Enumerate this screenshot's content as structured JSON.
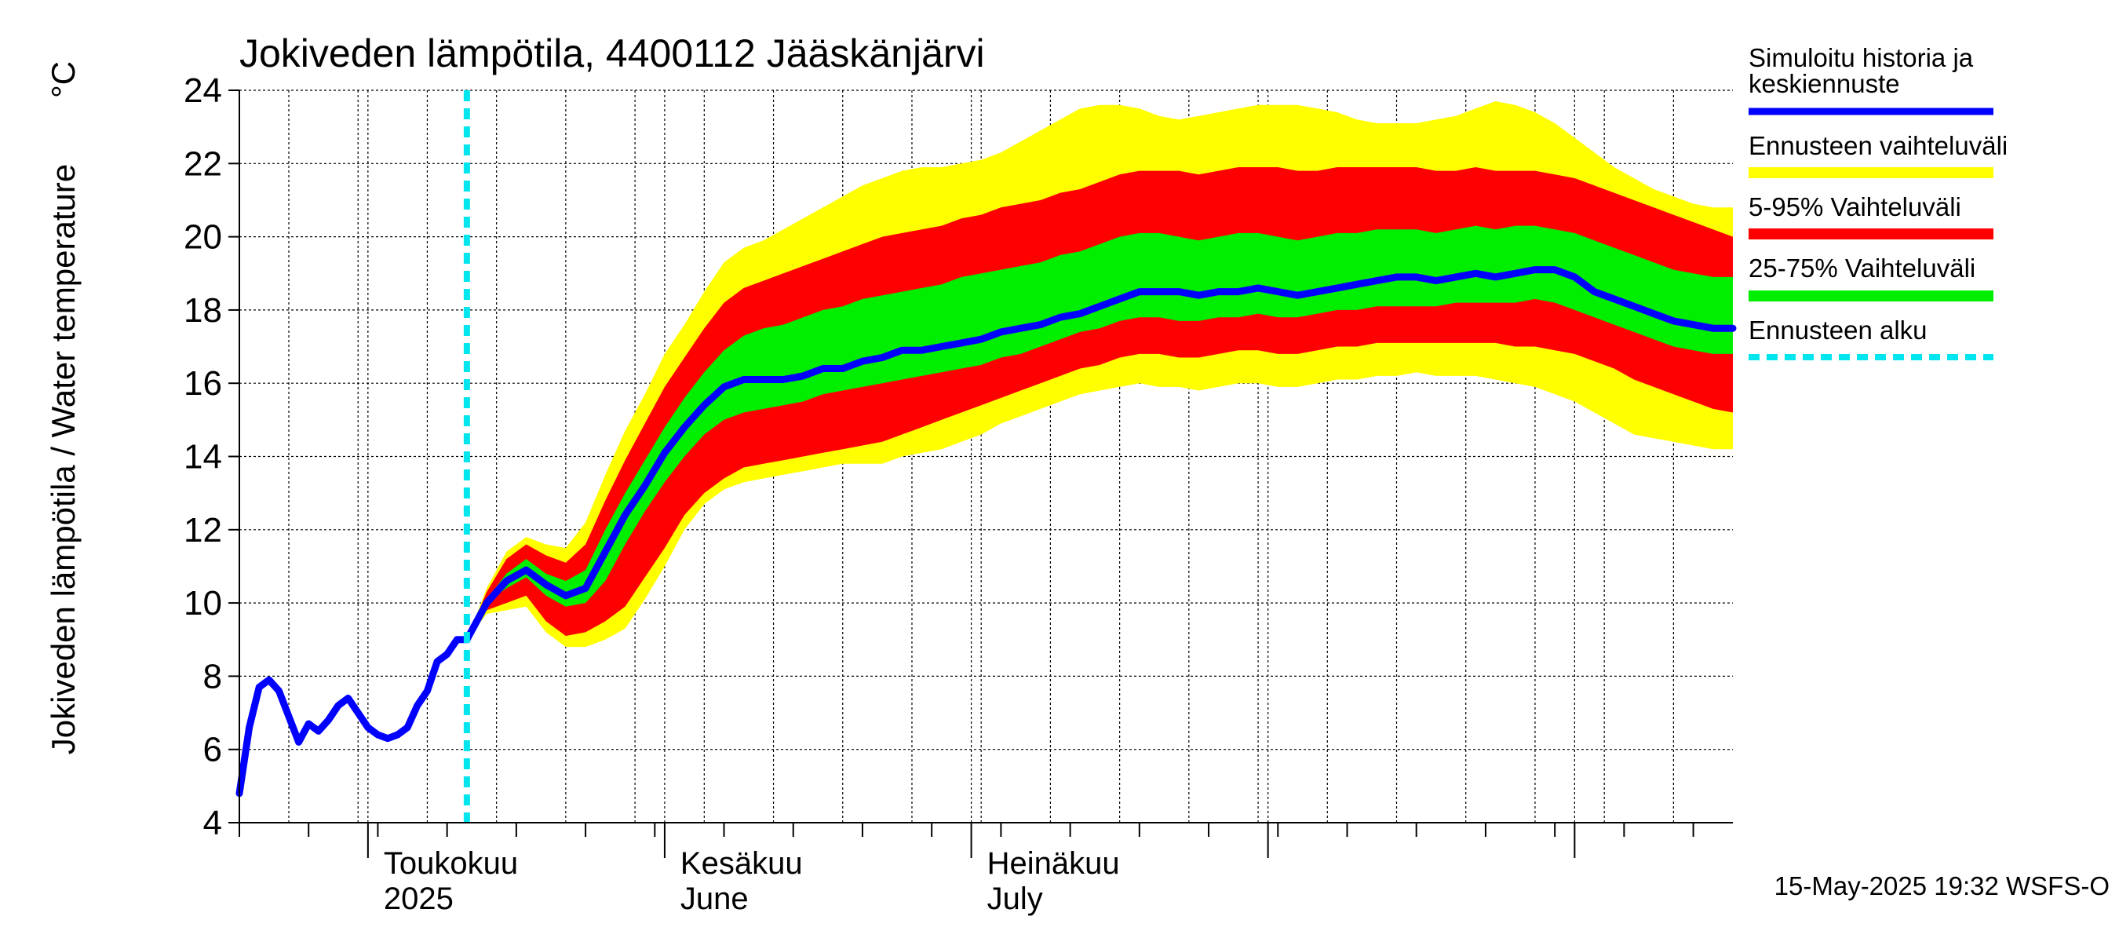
{
  "chart_data": {
    "type": "area",
    "title": "Jokiveden lämpötila, 4400112 Jääskänjärvi",
    "ylabel": "Jokiveden lämpötila / Water temperature",
    "yunit": "°C",
    "ylim": [
      4,
      24
    ],
    "yticks": [
      4,
      6,
      8,
      10,
      12,
      14,
      16,
      18,
      20,
      22,
      24
    ],
    "xlim": [
      "2025-03-19",
      "2025-08-17"
    ],
    "grid": true,
    "legend_position": "right",
    "month_labels": [
      {
        "date": "2025-04-01",
        "line1": "Toukokuu",
        "line2": "2025"
      },
      {
        "date": "2025-05-01",
        "line1": "Kesäkuu",
        "line2": "June"
      },
      {
        "date": "2025-06-01",
        "line1": "Heinäkuu",
        "line2": "July"
      }
    ],
    "forecast_start": "2025-04-11",
    "footer": "15-May-2025 19:32 WSFS-O",
    "legend": [
      {
        "key": "history",
        "label_lines": [
          "Simuloitu historia ja",
          "keskiennuste"
        ],
        "color": "#0000ff",
        "style": "line"
      },
      {
        "key": "minmax",
        "label_lines": [
          "Ennusteen vaihteluväli"
        ],
        "color": "#ffff00",
        "style": "band"
      },
      {
        "key": "p5_95",
        "label_lines": [
          "5-95% Vaihteluväli"
        ],
        "color": "#ff0000",
        "style": "band"
      },
      {
        "key": "p25_75",
        "label_lines": [
          "25-75% Vaihteluväli"
        ],
        "color": "#00ee00",
        "style": "band"
      },
      {
        "key": "start",
        "label_lines": [
          "Ennusteen alku"
        ],
        "color": "#00e5ee",
        "style": "dashed"
      }
    ],
    "history": {
      "x": [
        "2025-03-19",
        "2025-03-20",
        "2025-03-21",
        "2025-03-22",
        "2025-03-23",
        "2025-03-24",
        "2025-03-25",
        "2025-03-26",
        "2025-03-27",
        "2025-03-28",
        "2025-03-29",
        "2025-03-30",
        "2025-03-31",
        "2025-04-01",
        "2025-04-02",
        "2025-04-03",
        "2025-04-04",
        "2025-04-05",
        "2025-04-06",
        "2025-04-07",
        "2025-04-08",
        "2025-04-09",
        "2025-04-10",
        "2025-04-11"
      ],
      "y": [
        4.8,
        6.6,
        7.7,
        7.9,
        7.6,
        6.9,
        6.2,
        6.7,
        6.5,
        6.8,
        7.2,
        7.4,
        7.0,
        6.6,
        6.4,
        6.3,
        6.4,
        6.6,
        7.2,
        7.6,
        8.4,
        8.6,
        9.0,
        9.0
      ]
    },
    "forecast": {
      "x": [
        "2025-04-11",
        "2025-04-13",
        "2025-04-15",
        "2025-04-17",
        "2025-04-19",
        "2025-04-21",
        "2025-04-23",
        "2025-04-25",
        "2025-04-27",
        "2025-04-29",
        "2025-05-01",
        "2025-05-03",
        "2025-05-05",
        "2025-05-07",
        "2025-05-09",
        "2025-05-11",
        "2025-05-13",
        "2025-05-15",
        "2025-05-17",
        "2025-05-19",
        "2025-05-21",
        "2025-05-23",
        "2025-05-25",
        "2025-05-27",
        "2025-05-29",
        "2025-05-31",
        "2025-06-02",
        "2025-06-04",
        "2025-06-06",
        "2025-06-08",
        "2025-06-10",
        "2025-06-12",
        "2025-06-14",
        "2025-06-16",
        "2025-06-18",
        "2025-06-20",
        "2025-06-22",
        "2025-06-24",
        "2025-06-26",
        "2025-06-28",
        "2025-06-30",
        "2025-07-02",
        "2025-07-04",
        "2025-07-06",
        "2025-07-08",
        "2025-07-10",
        "2025-07-12",
        "2025-07-14",
        "2025-07-16",
        "2025-07-18",
        "2025-07-20",
        "2025-07-22",
        "2025-07-24",
        "2025-07-26",
        "2025-07-28",
        "2025-07-30",
        "2025-08-01",
        "2025-08-03",
        "2025-08-05",
        "2025-08-07",
        "2025-08-09",
        "2025-08-11",
        "2025-08-13",
        "2025-08-15",
        "2025-08-17"
      ],
      "median": [
        9.0,
        10.0,
        10.6,
        10.9,
        10.5,
        10.2,
        10.4,
        11.4,
        12.4,
        13.2,
        14.1,
        14.8,
        15.4,
        15.9,
        16.1,
        16.1,
        16.1,
        16.2,
        16.4,
        16.4,
        16.6,
        16.7,
        16.9,
        16.9,
        17.0,
        17.1,
        17.2,
        17.4,
        17.5,
        17.6,
        17.8,
        17.9,
        18.1,
        18.3,
        18.5,
        18.5,
        18.5,
        18.4,
        18.5,
        18.5,
        18.6,
        18.5,
        18.4,
        18.5,
        18.6,
        18.7,
        18.8,
        18.9,
        18.9,
        18.8,
        18.9,
        19.0,
        18.9,
        19.0,
        19.1,
        19.1,
        18.9,
        18.5,
        18.3,
        18.1,
        17.9,
        17.7,
        17.6,
        17.5,
        17.5
      ],
      "p25": [
        9.0,
        10.0,
        10.4,
        10.7,
        10.2,
        9.9,
        10.0,
        10.6,
        11.6,
        12.5,
        13.3,
        14.0,
        14.6,
        15.0,
        15.2,
        15.3,
        15.4,
        15.5,
        15.7,
        15.8,
        15.9,
        16.0,
        16.1,
        16.2,
        16.3,
        16.4,
        16.5,
        16.7,
        16.8,
        17.0,
        17.2,
        17.4,
        17.5,
        17.7,
        17.8,
        17.8,
        17.7,
        17.7,
        17.8,
        17.8,
        17.9,
        17.8,
        17.8,
        17.9,
        18.0,
        18.0,
        18.1,
        18.1,
        18.1,
        18.1,
        18.2,
        18.2,
        18.2,
        18.2,
        18.3,
        18.2,
        18.0,
        17.8,
        17.6,
        17.4,
        17.2,
        17.0,
        16.9,
        16.8,
        16.8
      ],
      "p75": [
        9.0,
        10.1,
        10.8,
        11.2,
        10.8,
        10.6,
        10.9,
        12.0,
        13.0,
        13.9,
        14.8,
        15.6,
        16.3,
        16.9,
        17.3,
        17.5,
        17.6,
        17.8,
        18.0,
        18.1,
        18.3,
        18.4,
        18.5,
        18.6,
        18.7,
        18.9,
        19.0,
        19.1,
        19.2,
        19.3,
        19.5,
        19.6,
        19.8,
        20.0,
        20.1,
        20.1,
        20.0,
        19.9,
        20.0,
        20.1,
        20.1,
        20.0,
        19.9,
        20.0,
        20.1,
        20.1,
        20.2,
        20.2,
        20.2,
        20.1,
        20.2,
        20.3,
        20.2,
        20.3,
        20.3,
        20.2,
        20.1,
        19.9,
        19.7,
        19.5,
        19.3,
        19.1,
        19.0,
        18.9,
        18.9
      ],
      "p5": [
        9.0,
        9.8,
        10.0,
        10.2,
        9.5,
        9.1,
        9.2,
        9.5,
        9.9,
        10.7,
        11.5,
        12.4,
        13.0,
        13.4,
        13.7,
        13.8,
        13.9,
        14.0,
        14.1,
        14.2,
        14.3,
        14.4,
        14.6,
        14.8,
        15.0,
        15.2,
        15.4,
        15.6,
        15.8,
        16.0,
        16.2,
        16.4,
        16.5,
        16.7,
        16.8,
        16.8,
        16.7,
        16.7,
        16.8,
        16.9,
        16.9,
        16.8,
        16.8,
        16.9,
        17.0,
        17.0,
        17.1,
        17.1,
        17.1,
        17.1,
        17.1,
        17.1,
        17.1,
        17.0,
        17.0,
        16.9,
        16.8,
        16.6,
        16.4,
        16.1,
        15.9,
        15.7,
        15.5,
        15.3,
        15.2
      ],
      "p95": [
        9.0,
        10.3,
        11.2,
        11.6,
        11.3,
        11.1,
        11.6,
        12.8,
        13.9,
        14.9,
        15.9,
        16.7,
        17.5,
        18.2,
        18.6,
        18.8,
        19.0,
        19.2,
        19.4,
        19.6,
        19.8,
        20.0,
        20.1,
        20.2,
        20.3,
        20.5,
        20.6,
        20.8,
        20.9,
        21.0,
        21.2,
        21.3,
        21.5,
        21.7,
        21.8,
        21.8,
        21.8,
        21.7,
        21.8,
        21.9,
        21.9,
        21.9,
        21.8,
        21.8,
        21.9,
        21.9,
        21.9,
        21.9,
        21.9,
        21.8,
        21.8,
        21.9,
        21.8,
        21.8,
        21.8,
        21.7,
        21.6,
        21.4,
        21.2,
        21.0,
        20.8,
        20.6,
        20.4,
        20.2,
        20.0
      ],
      "min": [
        9.0,
        9.7,
        9.8,
        9.9,
        9.2,
        8.8,
        8.8,
        9.0,
        9.3,
        10.1,
        11.0,
        12.0,
        12.7,
        13.1,
        13.3,
        13.4,
        13.5,
        13.6,
        13.7,
        13.8,
        13.8,
        13.8,
        14.0,
        14.1,
        14.2,
        14.4,
        14.6,
        14.9,
        15.1,
        15.3,
        15.5,
        15.7,
        15.8,
        15.9,
        16.0,
        15.9,
        15.9,
        15.8,
        15.9,
        16.0,
        16.0,
        15.9,
        15.9,
        16.0,
        16.1,
        16.1,
        16.2,
        16.2,
        16.3,
        16.2,
        16.2,
        16.2,
        16.1,
        16.0,
        15.9,
        15.7,
        15.5,
        15.2,
        14.9,
        14.6,
        14.5,
        14.4,
        14.3,
        14.2,
        14.2
      ],
      "max": [
        9.0,
        10.4,
        11.4,
        11.8,
        11.6,
        11.5,
        12.2,
        13.5,
        14.7,
        15.7,
        16.8,
        17.6,
        18.5,
        19.3,
        19.7,
        19.9,
        20.2,
        20.5,
        20.8,
        21.1,
        21.4,
        21.6,
        21.8,
        21.9,
        21.9,
        22.0,
        22.1,
        22.3,
        22.6,
        22.9,
        23.2,
        23.5,
        23.6,
        23.6,
        23.5,
        23.3,
        23.2,
        23.3,
        23.4,
        23.5,
        23.6,
        23.6,
        23.6,
        23.5,
        23.4,
        23.2,
        23.1,
        23.1,
        23.1,
        23.2,
        23.3,
        23.5,
        23.7,
        23.6,
        23.4,
        23.1,
        22.7,
        22.3,
        21.9,
        21.6,
        21.3,
        21.1,
        20.9,
        20.8,
        20.8
      ]
    }
  }
}
